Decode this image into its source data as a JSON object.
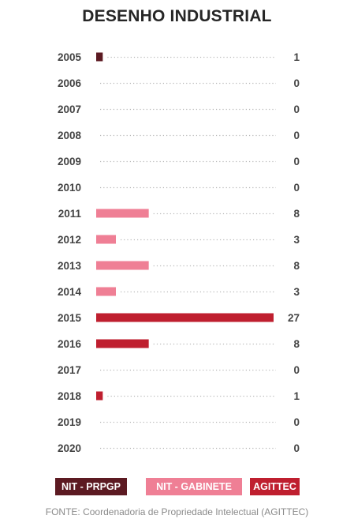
{
  "chart_data": {
    "type": "bar",
    "orientation": "horizontal",
    "title": "DESENHO INDUSTRIAL",
    "categories": [
      "2005",
      "2006",
      "2007",
      "2008",
      "2009",
      "2010",
      "2011",
      "2012",
      "2013",
      "2014",
      "2015",
      "2016",
      "2017",
      "2018",
      "2019",
      "2020"
    ],
    "values": [
      1,
      0,
      0,
      0,
      0,
      0,
      8,
      3,
      8,
      3,
      27,
      8,
      0,
      1,
      0,
      0
    ],
    "bar_groups": [
      "NIT - PRPGP",
      "",
      "",
      "",
      "",
      "",
      "NIT - GABINETE",
      "NIT - GABINETE",
      "NIT - GABINETE",
      "NIT - GABINETE",
      "AGITTEC",
      "AGITTEC",
      "",
      "AGITTEC",
      "",
      ""
    ],
    "legend": [
      {
        "label": "NIT - PRPGP",
        "color": "#5c1a22"
      },
      {
        "label": "NIT - GABINETE",
        "color": "#ef7f95"
      },
      {
        "label": "AGITTEC",
        "color": "#bf1f2f"
      }
    ],
    "xlim": [
      0,
      27
    ],
    "leader_line_color": "#b8b8b8",
    "grid": false,
    "source": "FONTE: Coordenadoria de Propriedade Intelectual (AGITTEC)"
  }
}
